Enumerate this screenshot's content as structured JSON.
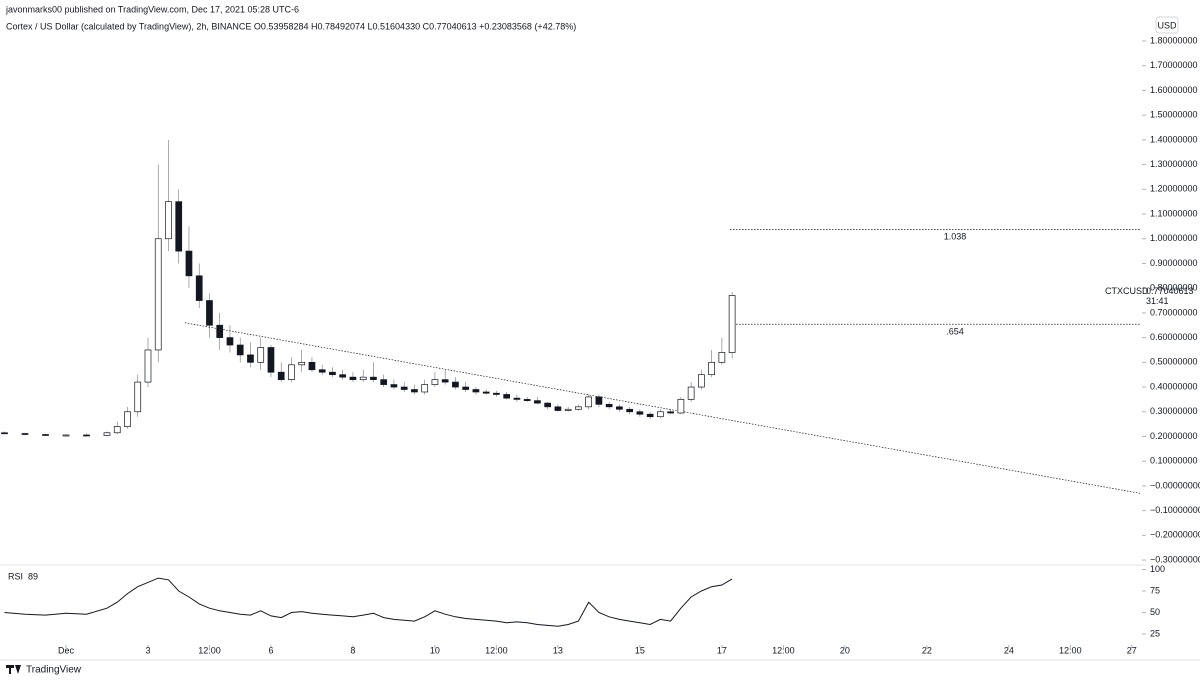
{
  "chart_data": {
    "type": "candlestick",
    "published": "javonmarks00 published on TradingView.com, Dec 17, 2021 05:28 UTC-6",
    "title": "Cortex / US Dollar (calculated by TradingView), 2h, BINANCE O0.53958284 H0.78492074 L0.51604330 C0.77040613 +0.23083568 (+42.78%)",
    "currency": "USD",
    "brand": "TradingView",
    "x": [
      -0.5,
      0,
      0.5,
      1,
      1.5,
      2,
      2.25,
      2.5,
      2.75,
      3,
      3.25,
      3.5,
      3.75,
      4,
      4.25,
      4.5,
      4.75,
      5,
      5.25,
      5.5,
      5.75,
      6,
      6.25,
      6.5,
      6.75,
      7,
      7.25,
      7.5,
      7.75,
      8,
      8.25,
      8.5,
      8.75,
      9,
      9.25,
      9.5,
      9.75,
      10,
      10.25,
      10.5,
      10.75,
      11,
      11.25,
      11.5,
      11.75,
      12,
      12.25,
      12.5,
      12.75,
      13,
      13.25,
      13.5,
      13.75,
      14,
      14.25,
      14.5,
      14.75,
      15,
      15.25,
      15.5,
      15.75,
      16,
      16.25,
      16.5,
      16.75,
      17,
      17.25
    ],
    "open": [
      0.215,
      0.212,
      0.208,
      0.205,
      0.206,
      0.204,
      0.215,
      0.24,
      0.3,
      0.42,
      0.55,
      1.0,
      1.15,
      0.95,
      0.85,
      0.75,
      0.65,
      0.6,
      0.57,
      0.53,
      0.5,
      0.56,
      0.46,
      0.43,
      0.49,
      0.5,
      0.47,
      0.46,
      0.45,
      0.44,
      0.43,
      0.44,
      0.43,
      0.41,
      0.4,
      0.39,
      0.38,
      0.41,
      0.43,
      0.42,
      0.4,
      0.39,
      0.38,
      0.375,
      0.37,
      0.355,
      0.35,
      0.345,
      0.335,
      0.32,
      0.305,
      0.31,
      0.32,
      0.36,
      0.33,
      0.32,
      0.31,
      0.3,
      0.29,
      0.28,
      0.3,
      0.295,
      0.35,
      0.4,
      0.45,
      0.5,
      0.53958284
    ],
    "high": [
      0.22,
      0.215,
      0.212,
      0.21,
      0.212,
      0.22,
      0.26,
      0.32,
      0.45,
      0.6,
      1.3,
      1.4,
      1.2,
      1.05,
      0.9,
      0.78,
      0.7,
      0.65,
      0.6,
      0.58,
      0.6,
      0.57,
      0.5,
      0.52,
      0.55,
      0.52,
      0.49,
      0.48,
      0.47,
      0.46,
      0.47,
      0.5,
      0.45,
      0.43,
      0.42,
      0.41,
      0.43,
      0.46,
      0.47,
      0.44,
      0.42,
      0.4,
      0.39,
      0.385,
      0.38,
      0.37,
      0.36,
      0.36,
      0.34,
      0.33,
      0.32,
      0.33,
      0.37,
      0.37,
      0.34,
      0.33,
      0.32,
      0.31,
      0.3,
      0.31,
      0.31,
      0.36,
      0.42,
      0.47,
      0.55,
      0.6,
      0.78492074
    ],
    "low": [
      0.21,
      0.205,
      0.202,
      0.2,
      0.2,
      0.2,
      0.21,
      0.23,
      0.28,
      0.4,
      0.5,
      0.95,
      0.9,
      0.8,
      0.72,
      0.6,
      0.55,
      0.54,
      0.5,
      0.48,
      0.47,
      0.44,
      0.42,
      0.42,
      0.46,
      0.46,
      0.45,
      0.44,
      0.43,
      0.42,
      0.42,
      0.42,
      0.4,
      0.39,
      0.38,
      0.37,
      0.37,
      0.4,
      0.41,
      0.39,
      0.38,
      0.37,
      0.37,
      0.36,
      0.35,
      0.34,
      0.34,
      0.33,
      0.31,
      0.3,
      0.3,
      0.305,
      0.31,
      0.32,
      0.31,
      0.3,
      0.29,
      0.28,
      0.27,
      0.275,
      0.29,
      0.29,
      0.34,
      0.39,
      0.44,
      0.49,
      0.5160433
    ],
    "close": [
      0.212,
      0.208,
      0.205,
      0.206,
      0.204,
      0.215,
      0.24,
      0.3,
      0.42,
      0.55,
      1.0,
      1.15,
      0.95,
      0.85,
      0.75,
      0.65,
      0.6,
      0.57,
      0.53,
      0.5,
      0.56,
      0.46,
      0.43,
      0.49,
      0.5,
      0.47,
      0.46,
      0.45,
      0.44,
      0.43,
      0.44,
      0.43,
      0.41,
      0.4,
      0.39,
      0.38,
      0.41,
      0.43,
      0.42,
      0.4,
      0.39,
      0.38,
      0.375,
      0.37,
      0.355,
      0.35,
      0.345,
      0.335,
      0.32,
      0.305,
      0.31,
      0.32,
      0.36,
      0.33,
      0.32,
      0.31,
      0.3,
      0.29,
      0.28,
      0.3,
      0.295,
      0.35,
      0.4,
      0.45,
      0.5,
      0.54,
      0.77040613
    ],
    "up_color": "#ffffff",
    "down_color": "#131722",
    "edge_color": "#131722",
    "xlim": [
      -0.61,
      27.2
    ],
    "xticks": [
      {
        "value": 1,
        "label": "Dec"
      },
      3,
      {
        "value": 4.5,
        "label": "12:00"
      },
      6,
      8,
      10,
      {
        "value": 11.5,
        "label": "12:00"
      },
      13,
      15,
      17,
      {
        "value": 18.5,
        "label": "12:00"
      },
      20,
      22,
      24,
      {
        "value": 25.5,
        "label": "12:00"
      },
      27
    ],
    "ylim": [
      -0.32,
      1.885
    ],
    "yticks": [
      {
        "value": 1.8,
        "label": "1.80000000"
      },
      {
        "value": 1.7,
        "label": "1.70000000"
      },
      {
        "value": 1.6,
        "label": "1.60000000"
      },
      {
        "value": 1.5,
        "label": "1.50000000"
      },
      {
        "value": 1.4,
        "label": "1.40000000"
      },
      {
        "value": 1.3,
        "label": "1.30000000"
      },
      {
        "value": 1.2,
        "label": "1.20000000"
      },
      {
        "value": 1.1,
        "label": "1.10000000"
      },
      {
        "value": 1.0,
        "label": "1.00000000"
      },
      {
        "value": 0.9,
        "label": "0.90000000"
      },
      {
        "value": 0.8,
        "label": "0.80000000"
      },
      {
        "value": 0.7,
        "label": "0.70000000"
      },
      {
        "value": 0.6,
        "label": "0.60000000"
      },
      {
        "value": 0.5,
        "label": "0.50000000"
      },
      {
        "value": 0.4,
        "label": "0.40000000"
      },
      {
        "value": 0.3,
        "label": "0.30000000"
      },
      {
        "value": 0.2,
        "label": "0.20000000"
      },
      {
        "value": 0.1,
        "label": "0.10000000"
      },
      {
        "value": 0,
        "label": "−0.00000000"
      },
      {
        "value": -0.1,
        "label": "−0.10000000"
      },
      {
        "value": -0.2,
        "label": "−0.20000000"
      },
      {
        "value": -0.3,
        "label": "−0.30000000"
      }
    ],
    "last_price": {
      "symbol": "CTXCUSD",
      "value": 0.77040613,
      "countdown": "31:41",
      "color": "#131722"
    },
    "trendline": {
      "x": [
        3.9,
        27.2
      ],
      "y": [
        0.66,
        -0.03
      ]
    },
    "levels": {
      "x": [
        17.2,
        27.2
      ],
      "values": [
        1.038,
        0.654
      ],
      "value_labels": [
        "1.038",
        ".654"
      ]
    },
    "rsi": {
      "title": "RSI",
      "current": 89,
      "color": "#131722",
      "values": [
        50,
        48,
        47,
        49,
        48,
        55,
        62,
        72,
        80,
        85,
        90,
        88,
        75,
        68,
        60,
        55,
        52,
        50,
        48,
        47,
        52,
        46,
        44,
        50,
        51,
        49,
        48,
        47,
        46,
        45,
        47,
        49,
        44,
        42,
        41,
        40,
        45,
        52,
        48,
        45,
        43,
        42,
        41,
        40,
        38,
        39,
        38,
        36,
        35,
        34,
        36,
        40,
        62,
        50,
        45,
        42,
        40,
        38,
        36,
        42,
        40,
        55,
        68,
        75,
        80,
        82,
        89
      ],
      "ylim": [
        12.2,
        105.2
      ],
      "yticks": [
        100,
        75,
        50,
        25
      ]
    }
  }
}
